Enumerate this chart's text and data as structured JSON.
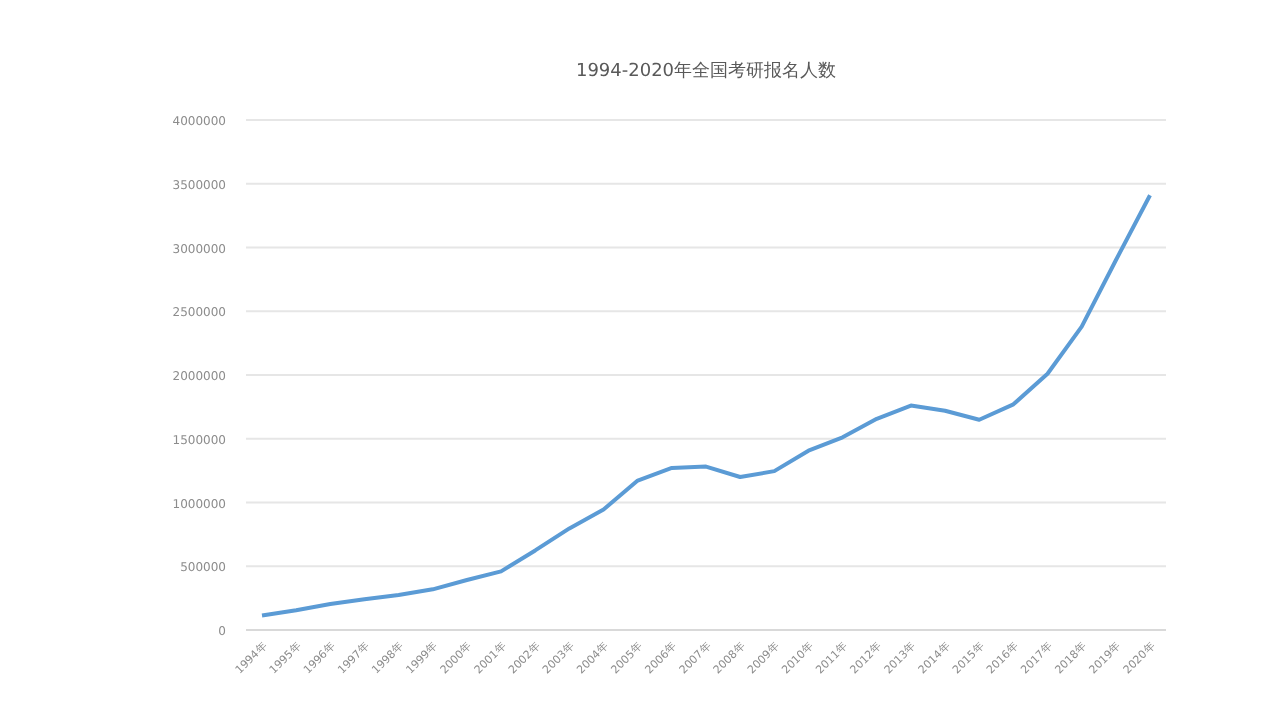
{
  "chart_data": {
    "type": "line",
    "title": "1994-2020年全国考研报名人数",
    "categories": [
      "1994年",
      "1995年",
      "1996年",
      "1997年",
      "1998年",
      "1999年",
      "2000年",
      "2001年",
      "2002年",
      "2003年",
      "2004年",
      "2005年",
      "2006年",
      "2007年",
      "2008年",
      "2009年",
      "2010年",
      "2011年",
      "2012年",
      "2013年",
      "2014年",
      "2015年",
      "2016年",
      "2017年",
      "2018年",
      "2019年",
      "2020年"
    ],
    "series": [
      {
        "color": "#5b9bd5",
        "values": [
          114000,
          155000,
          204000,
          242000,
          274000,
          319000,
          392000,
          460000,
          624000,
          797000,
          945000,
          1172000,
          1271000,
          1282000,
          1200000,
          1246000,
          1406000,
          1511000,
          1656000,
          1760000,
          1720000,
          1649000,
          1770000,
          2010000,
          2380000,
          2900000,
          3410000
        ]
      }
    ],
    "ylim": [
      0,
      4000000
    ],
    "yticks": [
      0,
      500000,
      1000000,
      1500000,
      2000000,
      2500000,
      3000000,
      3500000,
      4000000
    ],
    "grid": "y",
    "marker": "none"
  }
}
